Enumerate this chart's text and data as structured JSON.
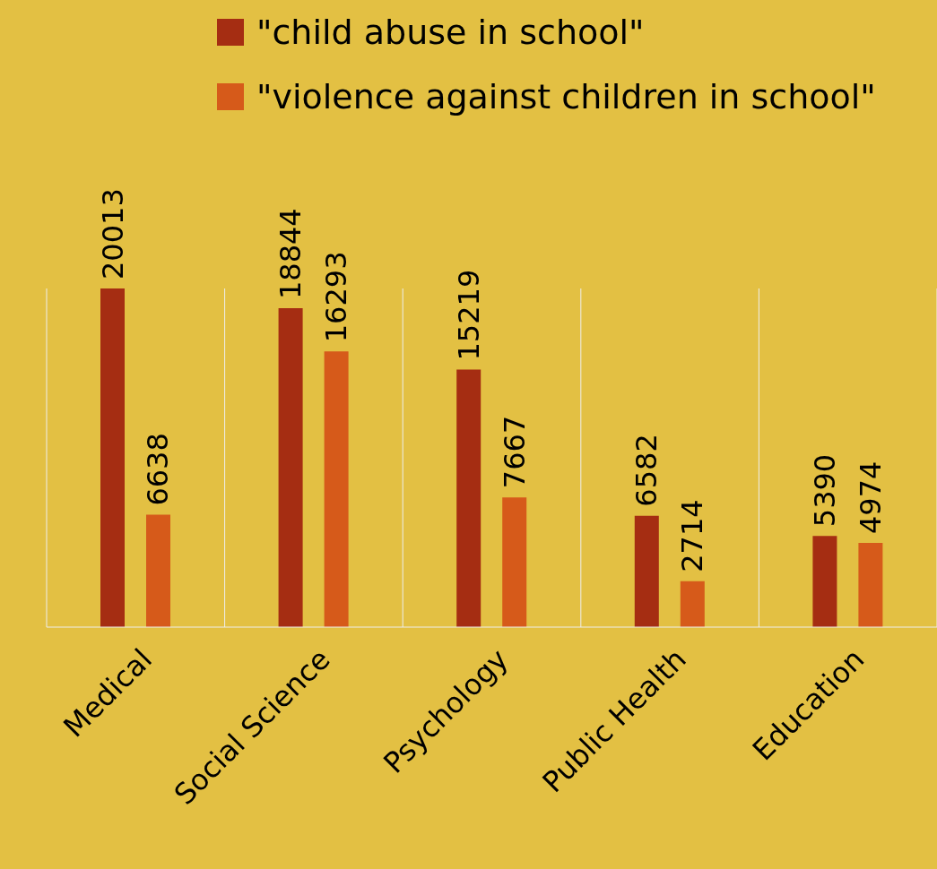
{
  "chart_data": {
    "type": "bar",
    "categories": [
      "Medical",
      "Social Science",
      "Psychology",
      "Public Health",
      "Education"
    ],
    "series": [
      {
        "name": "\"child abuse in school\"",
        "color": "#a52d12",
        "values": [
          20013,
          18844,
          15219,
          6582,
          5390
        ]
      },
      {
        "name": "\"violence against children in school\"",
        "color": "#d65a1a",
        "values": [
          6638,
          16293,
          7667,
          2714,
          4974
        ]
      }
    ],
    "data_labels": true,
    "grid": "x",
    "legend": "top"
  }
}
